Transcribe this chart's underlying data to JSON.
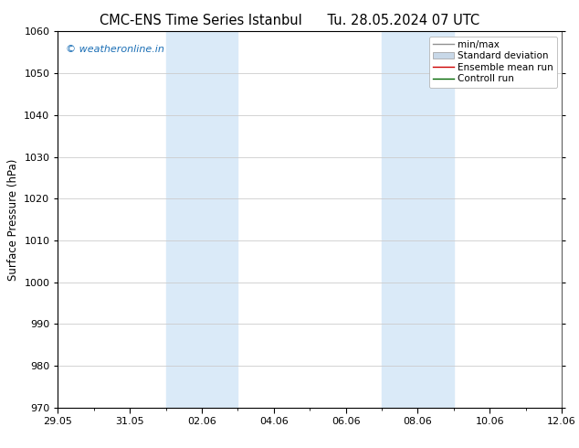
{
  "title_left": "CMC-ENS Time Series Istanbul",
  "title_right": "Tu. 28.05.2024 07 UTC",
  "ylabel": "Surface Pressure (hPa)",
  "ylim": [
    970,
    1060
  ],
  "yticks": [
    970,
    980,
    990,
    1000,
    1010,
    1020,
    1030,
    1040,
    1050,
    1060
  ],
  "xtick_labels": [
    "29.05",
    "31.05",
    "02.06",
    "04.06",
    "06.06",
    "08.06",
    "10.06",
    "12.06"
  ],
  "xtick_positions": [
    0,
    2,
    4,
    6,
    8,
    10,
    12,
    14
  ],
  "xlim": [
    0,
    14
  ],
  "shaded_regions": [
    {
      "start": 3,
      "end": 5
    },
    {
      "start": 9,
      "end": 11
    }
  ],
  "shaded_color": "#daeaf8",
  "watermark": "© weatheronline.in",
  "watermark_color": "#1a6eb5",
  "legend_items": [
    {
      "label": "min/max",
      "color": "#909090",
      "lw": 1.0
    },
    {
      "label": "Standard deviation",
      "color": "#c8d8e8",
      "patch": true
    },
    {
      "label": "Ensemble mean run",
      "color": "#cc0000",
      "lw": 1.0
    },
    {
      "label": "Controll run",
      "color": "#006600",
      "lw": 1.0
    }
  ],
  "bg_color": "#ffffff",
  "grid_color": "#cccccc",
  "title_fontsize": 10.5,
  "label_fontsize": 8.5,
  "tick_fontsize": 8,
  "legend_fontsize": 7.5
}
